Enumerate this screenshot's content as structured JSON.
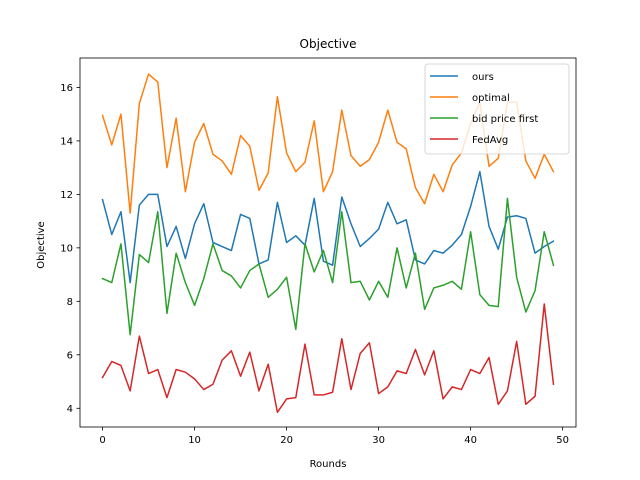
{
  "chart_data": {
    "type": "line",
    "title": "Objective",
    "xlabel": "Rounds",
    "ylabel": "Objective",
    "xlim": [
      -2.45,
      51.45
    ],
    "ylim": [
      3.3,
      17.1
    ],
    "xticks": [
      0,
      10,
      20,
      30,
      40,
      50
    ],
    "yticks": [
      4,
      6,
      8,
      10,
      12,
      14,
      16
    ],
    "grid": false,
    "legend_position": "upper-right",
    "x": [
      0,
      1,
      2,
      3,
      4,
      5,
      6,
      7,
      8,
      9,
      10,
      11,
      12,
      13,
      14,
      15,
      16,
      17,
      18,
      19,
      20,
      21,
      22,
      23,
      24,
      25,
      26,
      27,
      28,
      29,
      30,
      31,
      32,
      33,
      34,
      35,
      36,
      37,
      38,
      39,
      40,
      41,
      42,
      43,
      44,
      45,
      46,
      47,
      48,
      49
    ],
    "series": [
      {
        "name": "ours",
        "color": "#1f77b4",
        "values": [
          11.8,
          10.5,
          11.35,
          8.7,
          11.6,
          12.0,
          12.0,
          10.05,
          10.8,
          9.6,
          10.9,
          11.65,
          10.2,
          10.05,
          9.9,
          11.25,
          11.1,
          9.4,
          9.55,
          11.7,
          10.2,
          10.45,
          10.1,
          11.85,
          9.5,
          9.35,
          11.9,
          10.9,
          10.05,
          10.35,
          10.7,
          11.7,
          10.9,
          11.05,
          9.55,
          9.4,
          9.9,
          9.8,
          10.1,
          10.5,
          11.55,
          12.85,
          10.8,
          9.95,
          11.15,
          11.2,
          11.1,
          9.8,
          10.05,
          10.25
        ]
      },
      {
        "name": "optimal",
        "color": "#ff7f0e",
        "values": [
          14.95,
          13.85,
          15.0,
          11.3,
          15.4,
          16.5,
          16.2,
          13.0,
          14.85,
          12.1,
          13.95,
          14.65,
          13.5,
          13.25,
          12.75,
          14.2,
          13.8,
          12.15,
          12.8,
          15.65,
          13.55,
          12.85,
          13.2,
          14.75,
          12.1,
          12.85,
          15.15,
          13.45,
          13.05,
          13.3,
          13.95,
          15.15,
          13.95,
          13.7,
          12.25,
          11.65,
          12.75,
          12.1,
          13.1,
          13.55,
          14.65,
          15.45,
          13.05,
          13.35,
          15.45,
          15.45,
          13.25,
          12.6,
          13.5,
          12.85
        ]
      },
      {
        "name": "bid price first",
        "color": "#2ca02c",
        "values": [
          8.85,
          8.7,
          10.15,
          6.75,
          9.75,
          9.45,
          11.35,
          7.55,
          9.8,
          8.7,
          7.85,
          8.85,
          10.15,
          9.15,
          8.95,
          8.5,
          9.15,
          9.4,
          8.15,
          8.45,
          8.9,
          6.95,
          10.15,
          9.1,
          9.9,
          8.7,
          11.35,
          8.7,
          8.75,
          8.05,
          8.75,
          8.15,
          10.0,
          8.5,
          9.8,
          7.7,
          8.5,
          8.6,
          8.75,
          8.45,
          10.6,
          8.25,
          7.85,
          7.8,
          11.85,
          8.9,
          7.6,
          8.4,
          10.6,
          9.35
        ]
      },
      {
        "name": "FedAvg",
        "color": "#d62728",
        "values": [
          5.15,
          5.75,
          5.6,
          4.65,
          6.7,
          5.3,
          5.45,
          4.4,
          5.45,
          5.35,
          5.1,
          4.7,
          4.9,
          5.8,
          6.15,
          5.2,
          6.1,
          4.65,
          5.65,
          3.85,
          4.35,
          4.4,
          6.4,
          4.5,
          4.5,
          4.6,
          6.6,
          4.7,
          6.05,
          6.45,
          4.55,
          4.8,
          5.4,
          5.3,
          6.2,
          5.25,
          6.15,
          4.35,
          4.8,
          4.7,
          5.45,
          5.3,
          5.9,
          4.15,
          4.65,
          6.5,
          4.15,
          4.45,
          7.9,
          4.9
        ]
      }
    ]
  }
}
